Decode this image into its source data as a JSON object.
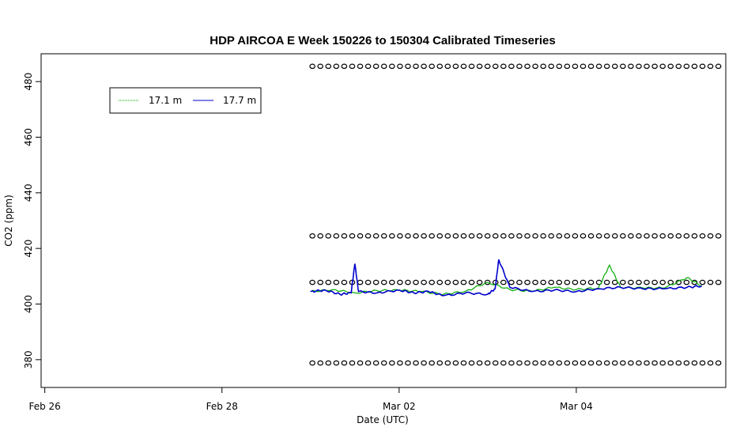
{
  "chart_data": {
    "type": "line",
    "title": "HDP AIRCOA E  Week 150226 to 150304  Calibrated Timeseries",
    "xlabel": "Date (UTC)",
    "ylabel": "CO2 (ppm)",
    "x_unit": "days",
    "xlim": [
      "2015-02-25 23:00",
      "2015-03-05 16:30"
    ],
    "ylim": [
      370,
      490
    ],
    "x_ticks": [
      {
        "value": "2015-02-26",
        "label": "Feb 26"
      },
      {
        "value": "2015-02-28",
        "label": "Feb 28"
      },
      {
        "value": "2015-03-02",
        "label": "Mar 02"
      },
      {
        "value": "2015-03-04",
        "label": "Mar 04"
      }
    ],
    "y_ticks": [
      {
        "value": 380,
        "label": "380"
      },
      {
        "value": 400,
        "label": "400"
      },
      {
        "value": 420,
        "label": "420"
      },
      {
        "value": 440,
        "label": "440"
      },
      {
        "value": 460,
        "label": "460"
      },
      {
        "value": 480,
        "label": "480"
      }
    ],
    "legend": {
      "placement": "top-left",
      "entries": [
        {
          "name": "17.1 m",
          "color": "#00aa00"
        },
        {
          "name": "17.7 m",
          "color": "#0000cc"
        }
      ]
    },
    "series": [
      {
        "name": "17.1 m",
        "color": "#00aa00",
        "x": [
          "2015-03-01 00:00",
          "2015-03-01 06:00",
          "2015-03-01 12:00",
          "2015-03-01 18:00",
          "2015-03-02 00:00",
          "2015-03-02 06:00",
          "2015-03-02 12:00",
          "2015-03-02 18:00",
          "2015-03-03 00:00",
          "2015-03-03 06:00",
          "2015-03-03 12:00",
          "2015-03-03 18:00",
          "2015-03-04 00:00",
          "2015-03-04 06:00",
          "2015-03-04 09:00",
          "2015-03-04 12:00",
          "2015-03-04 18:00",
          "2015-03-05 00:00",
          "2015-03-05 06:00",
          "2015-03-05 10:00"
        ],
        "values": [
          404.5,
          405.2,
          404.0,
          404.8,
          405.0,
          404.5,
          403.5,
          404.6,
          407.8,
          405.2,
          404.6,
          406.0,
          405.2,
          405.8,
          414.0,
          406.0,
          405.8,
          405.8,
          409.5,
          406.5
        ]
      },
      {
        "name": "17.7 m",
        "color": "#0000cc",
        "x": [
          "2015-03-01 00:00",
          "2015-03-01 04:00",
          "2015-03-01 08:00",
          "2015-03-01 11:00",
          "2015-03-01 12:00",
          "2015-03-01 13:00",
          "2015-03-01 18:00",
          "2015-03-02 00:00",
          "2015-03-02 04:00",
          "2015-03-02 08:00",
          "2015-03-02 12:00",
          "2015-03-02 18:00",
          "2015-03-03 00:00",
          "2015-03-03 02:00",
          "2015-03-03 03:00",
          "2015-03-03 06:00",
          "2015-03-03 12:00",
          "2015-03-03 18:00",
          "2015-03-04 00:00",
          "2015-03-04 06:00",
          "2015-03-04 12:00",
          "2015-03-04 18:00",
          "2015-03-05 00:00",
          "2015-03-05 06:00",
          "2015-03-05 10:00"
        ],
        "values": [
          404.5,
          405.0,
          403.5,
          404.0,
          414.5,
          404.5,
          404.0,
          405.0,
          404.0,
          404.5,
          403.0,
          404.0,
          403.5,
          405.5,
          416.0,
          406.0,
          404.5,
          405.0,
          404.5,
          405.5,
          406.0,
          405.5,
          405.5,
          406.0,
          406.5
        ]
      }
    ],
    "reference_series": [
      {
        "marker": "circle",
        "value": 485.5,
        "x_start": "2015-03-01 00:30",
        "x_end": "2015-03-05 14:30",
        "count": 52
      },
      {
        "marker": "circle",
        "value": 424.5,
        "x_start": "2015-03-01 00:30",
        "x_end": "2015-03-05 14:30",
        "count": 52
      },
      {
        "marker": "circle",
        "value": 407.8,
        "x_start": "2015-03-01 00:30",
        "x_end": "2015-03-05 14:30",
        "count": 52
      },
      {
        "marker": "circle",
        "value": 378.8,
        "x_start": "2015-03-01 00:30",
        "x_end": "2015-03-05 14:30",
        "count": 52
      }
    ]
  }
}
